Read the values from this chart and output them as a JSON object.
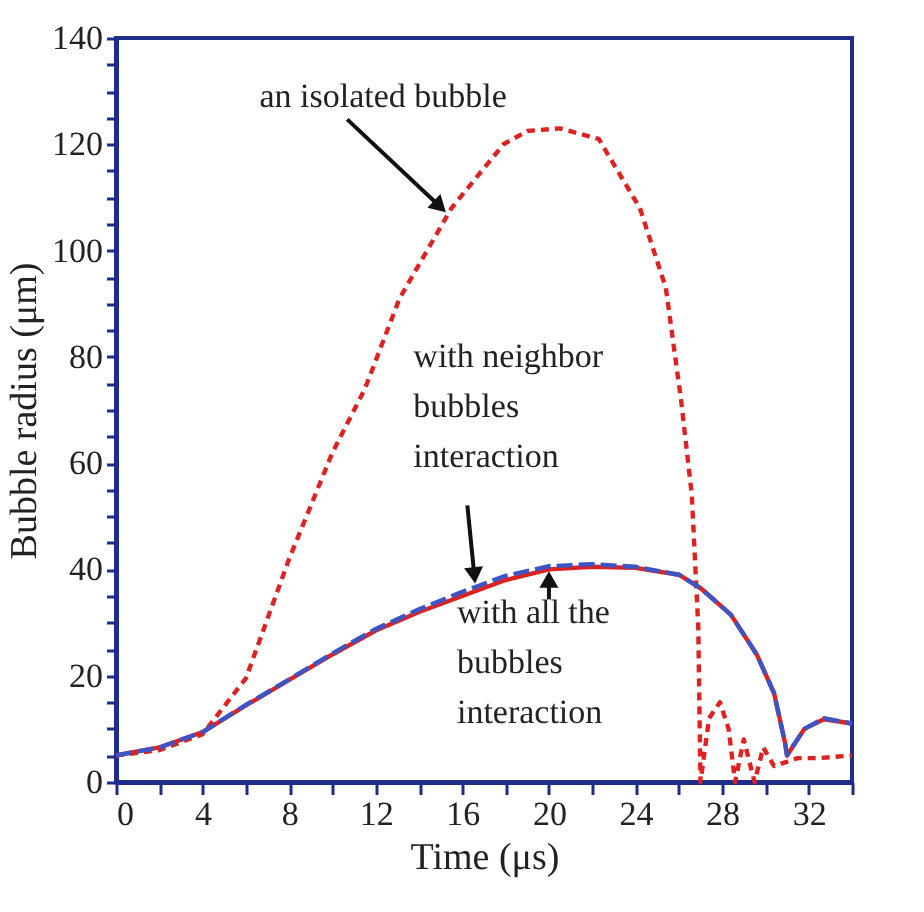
{
  "chart_data": {
    "type": "line",
    "xlabel": "Time (μs)",
    "ylabel": "Bubble radius (μm)",
    "xlim": [
      0,
      34
    ],
    "ylim": [
      0,
      140
    ],
    "xticks": [
      0,
      {
        "value": 2,
        "label": null
      },
      4,
      {
        "value": 6,
        "label": null
      },
      8,
      {
        "value": 10,
        "label": null
      },
      12,
      {
        "value": 14,
        "label": null
      },
      16,
      {
        "value": 18,
        "label": null
      },
      20,
      {
        "value": 22,
        "label": null
      },
      24,
      {
        "value": 26,
        "label": null
      },
      28,
      {
        "value": 30,
        "label": null
      },
      32,
      {
        "value": 34,
        "label": null
      }
    ],
    "yticks": [
      0,
      {
        "value": 5,
        "label": null
      },
      {
        "value": 10,
        "label": null
      },
      {
        "value": 15,
        "label": null
      },
      20,
      {
        "value": 25,
        "label": null
      },
      {
        "value": 30,
        "label": null
      },
      {
        "value": 35,
        "label": null
      },
      40,
      {
        "value": 45,
        "label": null
      },
      {
        "value": 50,
        "label": null
      },
      {
        "value": 55,
        "label": null
      },
      60,
      {
        "value": 65,
        "label": null
      },
      {
        "value": 70,
        "label": null
      },
      {
        "value": 75,
        "label": null
      },
      80,
      {
        "value": 85,
        "label": null
      },
      {
        "value": 90,
        "label": null
      },
      {
        "value": 95,
        "label": null
      },
      100,
      {
        "value": 105,
        "label": null
      },
      {
        "value": 110,
        "label": null
      },
      {
        "value": 115,
        "label": null
      },
      120,
      {
        "value": 125,
        "label": null
      },
      {
        "value": 130,
        "label": null
      },
      {
        "value": 135,
        "label": null
      },
      140
    ],
    "grid": false,
    "marker": "none",
    "series": [
      {
        "color": "#dd2222",
        "line_style": "dashed",
        "x": [
          0,
          2,
          4,
          6,
          8,
          10,
          11.5,
          13.1,
          15.5,
          17.9,
          19,
          20.5,
          22.3,
          24.2,
          25.4,
          26.1,
          26.6,
          26.9,
          27.0,
          27.4,
          27.9,
          28.3,
          28.6,
          29.0,
          29.5,
          29.9,
          30.4,
          31.5,
          32.5,
          34
        ],
        "values": [
          5,
          6,
          9,
          19.5,
          42,
          62,
          74,
          91,
          108,
          120,
          122.5,
          123,
          121,
          108,
          93,
          72,
          54,
          29,
          0,
          12,
          15,
          10,
          0,
          8,
          0,
          6.5,
          3,
          4.5,
          4.5,
          5
        ]
      },
      {
        "color": "#dd2222",
        "line_style": "solid",
        "x": [
          0,
          2,
          4,
          6,
          8,
          10,
          12,
          14,
          16,
          18,
          20,
          22,
          24,
          26,
          27,
          28.4,
          29.6,
          30.4,
          30.9,
          31.0,
          31.8,
          32.7,
          34
        ],
        "values": [
          5,
          6.5,
          9.4,
          14.4,
          19.2,
          24,
          28.5,
          32,
          35,
          38,
          40,
          40.5,
          40.3,
          39,
          36.5,
          31.5,
          24,
          16.7,
          7.5,
          5,
          10,
          11.8,
          11
        ]
      },
      {
        "color": "#3d55c4",
        "line_style": "longdash",
        "x": [
          0,
          2,
          4,
          6,
          8,
          10,
          12,
          14,
          16,
          18,
          20,
          22,
          24,
          26,
          27,
          28.4,
          29.6,
          30.4,
          30.9,
          31.0,
          31.8,
          32.7,
          34
        ],
        "values": [
          5,
          6.5,
          9.4,
          14.5,
          19.3,
          24.2,
          28.8,
          32.5,
          35.8,
          38.8,
          40.6,
          41,
          40.5,
          39,
          36.5,
          31.5,
          24,
          16.7,
          7.5,
          5,
          10,
          12,
          11
        ]
      }
    ],
    "annotations": [
      {
        "text": "an isolated bubble",
        "x": 15.3,
        "y": 107
      },
      {
        "text": "with neighbor\nbubbles\ninteraction",
        "x": 16.6,
        "y": 37
      },
      {
        "text": "with all the\nbubbles\ninteraction",
        "x": 20,
        "y": 40
      }
    ]
  }
}
